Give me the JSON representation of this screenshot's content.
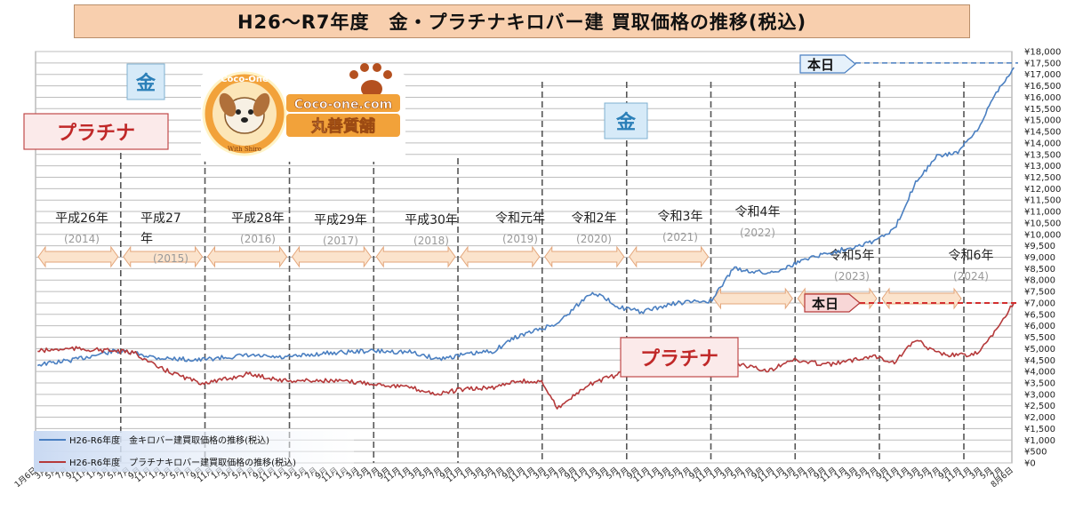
{
  "title": "H26～R7年度　金・プラチナキロバー建 買取価格の推移(税込)",
  "colors": {
    "gold": "#4a7fc1",
    "platinum": "#b5393a",
    "grid": "#bdbdbd",
    "arrow": "#fbe3cc"
  },
  "labels": {
    "gold_box_top": "金",
    "gold_box_mid": "金",
    "platinum_top": "プラチナ",
    "platinum_mid": "プラチナ",
    "today_top": "本日",
    "today_bottom": "本日",
    "logo_ring": "Coco-One",
    "logo_url": "Coco-one.com",
    "logo_shop": "丸善質舗",
    "logo_sub": "With Shiro"
  },
  "eras": [
    {
      "line1": "平成26年",
      "line2": "(2014)"
    },
    {
      "line1": "平成27",
      "line2": "年",
      "line3": "(2015)"
    },
    {
      "line1": "平成28年",
      "line2": "(2016)"
    },
    {
      "line1": "平成29年",
      "line2": "(2017)"
    },
    {
      "line1": "平成30年",
      "line2": "(2018)"
    },
    {
      "line1": "令和元年",
      "line2": "(2019)"
    },
    {
      "line1": "令和2年",
      "line2": "(2020)"
    },
    {
      "line1": "令和3年",
      "line2": "(2021)"
    },
    {
      "line1": "令和4年",
      "line2": "(2022)"
    },
    {
      "line1": "令和5年",
      "line2": "(2023)"
    },
    {
      "line1": "令和6年",
      "line2": "(2024)"
    }
  ],
  "chart_data": {
    "type": "line",
    "ylim": [
      0,
      18000
    ],
    "yticks": [
      "¥0",
      "¥500",
      "¥1,000",
      "¥1,500",
      "¥2,000",
      "¥2,500",
      "¥3,000",
      "¥3,500",
      "¥4,000",
      "¥4,500",
      "¥5,000",
      "¥5,500",
      "¥6,000",
      "¥6,500",
      "¥7,000",
      "¥7,500",
      "¥8,000",
      "¥8,500",
      "¥9,000",
      "¥9,500",
      "¥10,000",
      "¥10,500",
      "¥11,000",
      "¥11,500",
      "¥12,000",
      "¥12,500",
      "¥13,000",
      "¥13,500",
      "¥14,000",
      "¥14,500",
      "¥15,000",
      "¥15,500",
      "¥16,000",
      "¥16,500",
      "¥17,000",
      "¥17,500",
      "¥18,000"
    ],
    "x_tick_labels": [
      "1月6日",
      "3月",
      "5月",
      "7月",
      "9月",
      "11月",
      "1月",
      "3月",
      "5月",
      "7月",
      "9月",
      "11月",
      "1月",
      "3月",
      "5月",
      "7月",
      "9月",
      "11月",
      "1月",
      "3月",
      "5月",
      "7月",
      "9月",
      "11月",
      "1月",
      "3月",
      "5月",
      "7月",
      "9月",
      "11月",
      "1月",
      "3月",
      "5月",
      "7月",
      "9月",
      "11月",
      "1月",
      "3月",
      "5月",
      "7月",
      "9月",
      "11月",
      "1月",
      "3月",
      "5月",
      "7月",
      "9月",
      "11月",
      "1月",
      "3月",
      "5月",
      "7月",
      "9月",
      "11月",
      "1月",
      "3月",
      "5月",
      "7月",
      "9月",
      "11月",
      "1月",
      "3月",
      "5月",
      "7月",
      "9月",
      "11月",
      "1月",
      "3月",
      "5月",
      "7月",
      "9月",
      "11月",
      "1月",
      "3月",
      "5月",
      "7月",
      "9月",
      "11月",
      "1月",
      "3月",
      "5月",
      "7月",
      "9月",
      "11月",
      "1月",
      "3月",
      "5月",
      "7月",
      "9月",
      "11月",
      "1月",
      "3月",
      "5月",
      "7月",
      "8月6日"
    ],
    "x_range": [
      "2014-01-06",
      "2025-08-06"
    ],
    "series": [
      {
        "name": "H26-R6年度　金キロバー建買取価格の推移(税込)",
        "color": "#4a7fc1",
        "x": [
          "2014-01",
          "2014-06",
          "2014-12",
          "2015-03",
          "2015-06",
          "2015-12",
          "2016-03",
          "2016-07",
          "2016-12",
          "2017-06",
          "2017-12",
          "2018-06",
          "2018-10",
          "2019-01",
          "2019-06",
          "2019-09",
          "2020-01",
          "2020-03",
          "2020-08",
          "2020-12",
          "2021-03",
          "2021-08",
          "2022-01",
          "2022-04",
          "2022-09",
          "2022-12",
          "2023-03",
          "2023-06",
          "2023-12",
          "2024-03",
          "2024-06",
          "2024-09",
          "2024-12",
          "2025-03",
          "2025-05",
          "2025-08"
        ],
        "values": [
          4300,
          4500,
          4900,
          4800,
          4600,
          4500,
          4600,
          4700,
          4600,
          4800,
          4900,
          4850,
          4550,
          4700,
          4900,
          5500,
          5900,
          6100,
          7500,
          6800,
          6600,
          7000,
          7100,
          8500,
          8300,
          8600,
          9000,
          9200,
          9700,
          10200,
          12300,
          13400,
          13600,
          14600,
          16000,
          17300
        ]
      },
      {
        "name": "H26-R6年度　プラチナキロバー建買取価格の推移(税込)",
        "color": "#b5393a",
        "x": [
          "2014-01",
          "2014-06",
          "2014-12",
          "2015-03",
          "2015-06",
          "2015-12",
          "2016-03",
          "2016-07",
          "2016-12",
          "2017-06",
          "2017-12",
          "2018-06",
          "2018-10",
          "2019-01",
          "2019-06",
          "2019-09",
          "2020-01",
          "2020-03",
          "2020-08",
          "2020-12",
          "2021-03",
          "2021-08",
          "2022-01",
          "2022-04",
          "2022-09",
          "2022-12",
          "2023-03",
          "2023-06",
          "2023-12",
          "2024-03",
          "2024-06",
          "2024-09",
          "2024-12",
          "2025-03",
          "2025-05",
          "2025-08"
        ],
        "values": [
          4900,
          5000,
          4900,
          4800,
          4200,
          3500,
          3600,
          3900,
          3600,
          3600,
          3500,
          3300,
          3000,
          3200,
          3300,
          3600,
          3500,
          2400,
          3500,
          3900,
          4400,
          4000,
          4200,
          4400,
          4000,
          4500,
          4400,
          4300,
          4700,
          4400,
          5400,
          4800,
          4700,
          4800,
          5600,
          7000
        ]
      }
    ],
    "reference_values": {
      "gold_today": 17500,
      "platinum_today": 7000
    }
  }
}
